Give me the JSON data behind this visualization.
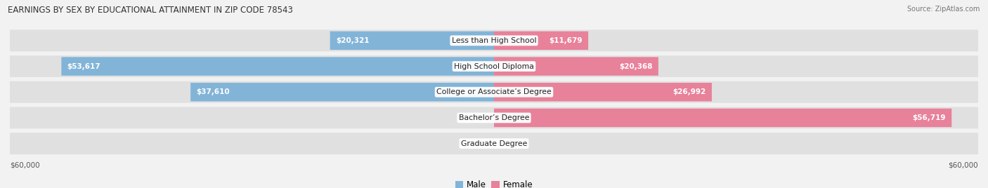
{
  "title": "EARNINGS BY SEX BY EDUCATIONAL ATTAINMENT IN ZIP CODE 78543",
  "source": "Source: ZipAtlas.com",
  "categories": [
    "Less than High School",
    "High School Diploma",
    "College or Associate’s Degree",
    "Bachelor’s Degree",
    "Graduate Degree"
  ],
  "male_values": [
    20321,
    53617,
    37610,
    0,
    0
  ],
  "female_values": [
    11679,
    20368,
    26992,
    56719,
    0
  ],
  "male_color": "#82b4d8",
  "female_color": "#e8819a",
  "max_value": 60000,
  "axis_label_left": "$60,000",
  "axis_label_right": "$60,000",
  "background_color": "#f2f2f2",
  "row_bg_color": "#e0e0e0",
  "figsize": [
    14.06,
    2.68
  ]
}
